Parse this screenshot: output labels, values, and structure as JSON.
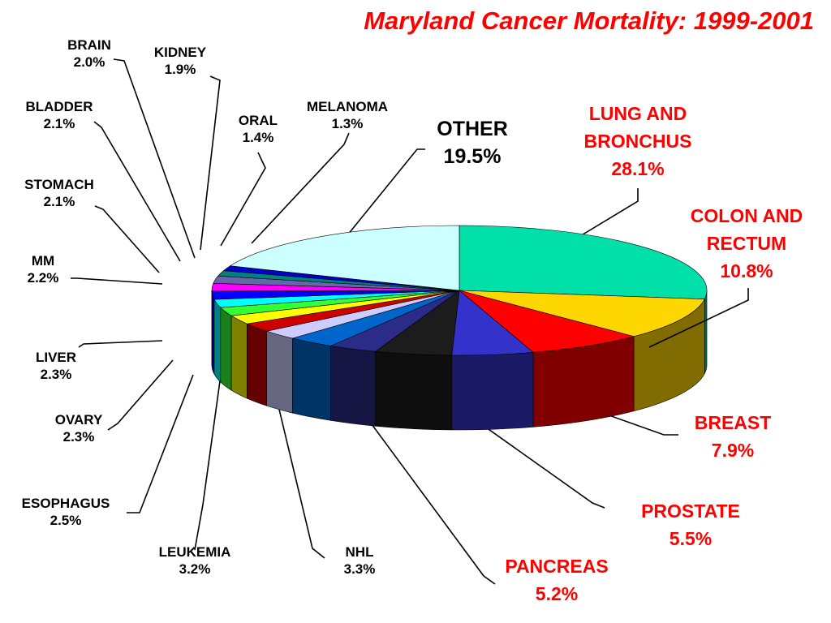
{
  "chart_data": {
    "type": "pie",
    "title": "Maryland Cancer Mortality: 1999-2001",
    "slices": [
      {
        "label": "LUNG AND BRONCHUS",
        "lines": [
          "LUNG AND",
          "BRONCHUS"
        ],
        "value_text": "28.1%",
        "value": 28.1,
        "color": "#00e0a8",
        "emph": true
      },
      {
        "label": "COLON AND RECTUM",
        "lines": [
          "COLON AND",
          "RECTUM"
        ],
        "value_text": "10.8%",
        "value": 10.8,
        "color": "#ffd700",
        "emph": true
      },
      {
        "label": "BREAST",
        "lines": [
          "BREAST"
        ],
        "value_text": "7.9%",
        "value": 7.9,
        "color": "#ff0000",
        "emph": true
      },
      {
        "label": "PROSTATE",
        "lines": [
          "PROSTATE"
        ],
        "value_text": "5.5%",
        "value": 5.5,
        "color": "#3333cc",
        "emph": true
      },
      {
        "label": "PANCREAS",
        "lines": [
          "PANCREAS"
        ],
        "value_text": "5.2%",
        "value": 5.2,
        "color": "#1c1c1c",
        "emph": true
      },
      {
        "label": "NHL",
        "lines": [
          "NHL"
        ],
        "value_text": "3.3%",
        "value": 3.3,
        "color": "#2b2b88",
        "emph": false
      },
      {
        "label": "LEUKEMIA",
        "lines": [
          "LEUKEMIA"
        ],
        "value_text": "3.2%",
        "value": 3.2,
        "color": "#0066cc",
        "emph": false
      },
      {
        "label": "ESOPHAGUS",
        "lines": [
          "ESOPHAGUS"
        ],
        "value_text": "2.5%",
        "value": 2.5,
        "color": "#ccccff",
        "emph": false
      },
      {
        "label": "OVARY",
        "lines": [
          "OVARY"
        ],
        "value_text": "2.3%",
        "value": 2.3,
        "color": "#cc0000",
        "emph": false
      },
      {
        "label": "LIVER",
        "lines": [
          "LIVER"
        ],
        "value_text": "2.3%",
        "value": 2.3,
        "color": "#ffff00",
        "emph": false
      },
      {
        "label": "MM",
        "lines": [
          "MM"
        ],
        "value_text": "2.2%",
        "value": 2.2,
        "color": "#33ff33",
        "emph": false
      },
      {
        "label": "STOMACH",
        "lines": [
          "STOMACH"
        ],
        "value_text": "2.1%",
        "value": 2.1,
        "color": "#00ffff",
        "emph": false
      },
      {
        "label": "BLADDER",
        "lines": [
          "BLADDER"
        ],
        "value_text": "2.1%",
        "value": 2.1,
        "color": "#0000ff",
        "emph": false
      },
      {
        "label": "BRAIN",
        "lines": [
          "BRAIN"
        ],
        "value_text": "2.0%",
        "value": 2.0,
        "color": "#ff00ff",
        "emph": false
      },
      {
        "label": "KIDNEY",
        "lines": [
          "KIDNEY"
        ],
        "value_text": "1.9%",
        "value": 1.9,
        "color": "#6666aa",
        "emph": false
      },
      {
        "label": "ORAL",
        "lines": [
          "ORAL"
        ],
        "value_text": "1.4%",
        "value": 1.4,
        "color": "#008080",
        "emph": false
      },
      {
        "label": "MELANOMA",
        "lines": [
          "MELANOMA"
        ],
        "value_text": "1.3%",
        "value": 1.3,
        "color": "#0000cc",
        "emph": false
      },
      {
        "label": "OTHER",
        "lines": [
          "OTHER"
        ],
        "value_text": "19.5%",
        "value": 19.5,
        "color": "#ccffff",
        "emph": false
      }
    ]
  }
}
